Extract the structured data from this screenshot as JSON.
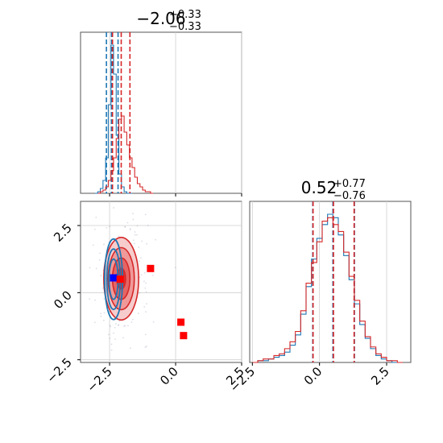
{
  "chart_data": [
    {
      "type": "histogram",
      "panel": "top-left marginal (parameter 1)",
      "title": {
        "main": "−2.06",
        "sup": "+0.33",
        "sub": "−0.33"
      },
      "xlim": [
        -3.6,
        2.5
      ],
      "grid": true,
      "series": [
        {
          "color": "#1f77b4",
          "bins": [
            -3.0,
            -2.9,
            -2.8,
            -2.7,
            -2.6,
            -2.5,
            -2.4,
            -2.3,
            -2.2,
            -2.1,
            -2.0,
            -1.9,
            -1.8,
            -1.7
          ],
          "counts": [
            0,
            1,
            3,
            8,
            22,
            55,
            92,
            74,
            36,
            12,
            4,
            1,
            0,
            0
          ],
          "quantiles": [
            -2.62,
            -2.43,
            -2.18
          ]
        },
        {
          "color": "#d62728",
          "bins": [
            -2.9,
            -2.8,
            -2.7,
            -2.6,
            -2.5,
            -2.4,
            -2.3,
            -2.2,
            -2.1,
            -2.0,
            -1.9,
            -1.8,
            -1.7,
            -1.6,
            -1.5,
            -1.4,
            -1.3,
            -1.2,
            -1.1,
            -1.0,
            -0.9
          ],
          "counts": [
            0,
            1,
            2,
            4,
            8,
            14,
            22,
            34,
            46,
            48,
            38,
            30,
            22,
            16,
            10,
            6,
            4,
            2,
            1,
            1,
            0
          ],
          "quantiles": [
            -2.39,
            -2.06,
            -1.73
          ]
        }
      ]
    },
    {
      "type": "contour",
      "panel": "bottom-left 2D density",
      "xlim": [
        -3.6,
        2.5
      ],
      "ylim": [
        -2.6,
        3.4
      ],
      "xticks": [
        "−2.5",
        "0.0",
        "2.5"
      ],
      "yticks": [
        "−2.5",
        "0.0",
        "2.5"
      ],
      "grid": true,
      "series": [
        {
          "color": "#d62728",
          "center": [
            -2.06,
            0.52
          ],
          "sigma": [
            0.33,
            0.77
          ],
          "filled": true
        },
        {
          "color": "#1f77b4",
          "center": [
            -2.35,
            0.5
          ],
          "sigma": [
            0.17,
            0.75
          ],
          "filled": false
        }
      ],
      "markers": [
        {
          "x": -2.35,
          "y": 0.55,
          "color": "#0000ff"
        },
        {
          "x": -2.1,
          "y": 0.5,
          "color": "#ff0000"
        },
        {
          "x": -0.95,
          "y": 0.9,
          "color": "#ff0000"
        },
        {
          "x": 0.2,
          "y": -1.1,
          "color": "#ff0000"
        },
        {
          "x": 0.3,
          "y": -1.6,
          "color": "#ff0000"
        }
      ]
    },
    {
      "type": "histogram",
      "panel": "bottom-right marginal (parameter 2)",
      "title": {
        "main": "0.52",
        "sup": "+0.77",
        "sub": "−0.76"
      },
      "xlim": [
        -2.6,
        3.4
      ],
      "xticks": [
        "−2.5",
        "0.0",
        "2.5"
      ],
      "grid": true,
      "series": [
        {
          "color": "#1f77b4",
          "bins": [
            -2.4,
            -2.2,
            -2.0,
            -1.8,
            -1.6,
            -1.4,
            -1.2,
            -1.0,
            -0.8,
            -0.6,
            -0.4,
            -0.2,
            0.0,
            0.2,
            0.4,
            0.6,
            0.8,
            1.0,
            1.2,
            1.4,
            1.6,
            1.8,
            2.0,
            2.2,
            2.4,
            2.6,
            2.8,
            3.0
          ],
          "counts": [
            0,
            1,
            1,
            2,
            3,
            4,
            6,
            10,
            16,
            28,
            44,
            60,
            72,
            80,
            86,
            84,
            74,
            62,
            48,
            34,
            22,
            14,
            8,
            4,
            2,
            1,
            0,
            0
          ],
          "quantiles": [
            -0.25,
            0.5,
            1.3
          ]
        },
        {
          "color": "#d62728",
          "bins": [
            -2.4,
            -2.2,
            -2.0,
            -1.8,
            -1.6,
            -1.4,
            -1.2,
            -1.0,
            -0.8,
            -0.6,
            -0.4,
            -0.2,
            0.0,
            0.2,
            0.4,
            0.6,
            0.8,
            1.0,
            1.2,
            1.4,
            1.6,
            1.8,
            2.0,
            2.2,
            2.4,
            2.6,
            2.8,
            3.0
          ],
          "counts": [
            0,
            1,
            2,
            2,
            4,
            5,
            8,
            12,
            18,
            30,
            46,
            58,
            70,
            82,
            84,
            80,
            76,
            64,
            50,
            36,
            24,
            15,
            9,
            5,
            3,
            1,
            1,
            0
          ],
          "quantiles": [
            -0.24,
            0.52,
            1.29
          ]
        }
      ]
    }
  ]
}
